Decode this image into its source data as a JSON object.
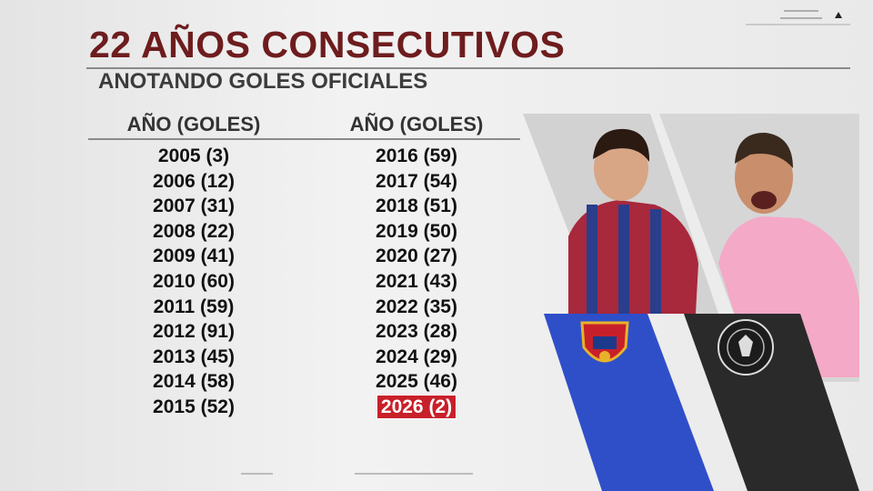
{
  "header": {
    "title": "22 AÑOS CONSECUTIVOS",
    "subtitle": "ANOTANDO GOLES OFICIALES"
  },
  "table": {
    "headers": [
      "AÑO (GOLES)",
      "AÑO (GOLES)"
    ],
    "columns": [
      [
        "2005 (3)",
        "2006 (12)",
        "2007 (31)",
        "2008 (22)",
        "2009 (41)",
        "2010 (60)",
        "2011 (59)",
        "2012 (91)",
        "2013 (45)",
        "2014 (58)",
        "2015 (52)"
      ],
      [
        "2016 (59)",
        "2017 (54)",
        "2018 (51)",
        "2019 (50)",
        "2020 (27)",
        "2021 (43)",
        "2022 (35)",
        "2023 (28)",
        "2024 (29)",
        "2025 (46)",
        "2026 (2)"
      ]
    ]
  }
}
